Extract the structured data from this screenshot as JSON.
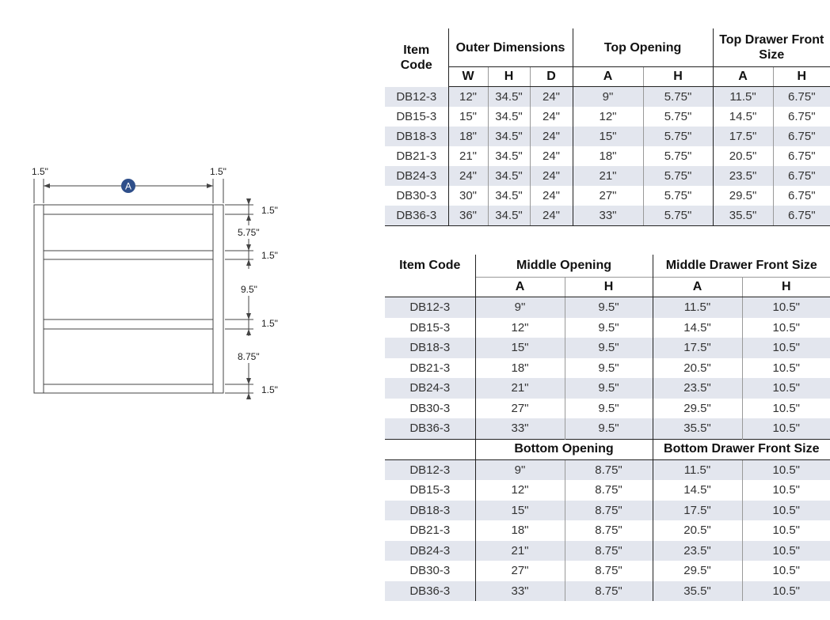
{
  "drawing": {
    "marker": "A",
    "left_stile": "1.5\"",
    "right_stile": "1.5\"",
    "rail_1": "1.5\"",
    "top_opening": "5.75\"",
    "rail_2": "1.5\"",
    "middle_opening": "9.5\"",
    "rail_3": "1.5\"",
    "bottom_opening": "8.75\"",
    "rail_4": "1.5\""
  },
  "top_table": {
    "headers": {
      "item_code": "Item Code",
      "outer": "Outer Dimensions",
      "top_opening": "Top Opening",
      "top_drawer": "Top Drawer Front Size"
    },
    "subheaders": [
      "W",
      "H",
      "D",
      "A",
      "H",
      "A",
      "H"
    ],
    "rows": [
      [
        "DB12-3",
        "12\"",
        "34.5\"",
        "24\"",
        "9\"",
        "5.75\"",
        "11.5\"",
        "6.75\""
      ],
      [
        "DB15-3",
        "15\"",
        "34.5\"",
        "24\"",
        "12\"",
        "5.75\"",
        "14.5\"",
        "6.75\""
      ],
      [
        "DB18-3",
        "18\"",
        "34.5\"",
        "24\"",
        "15\"",
        "5.75\"",
        "17.5\"",
        "6.75\""
      ],
      [
        "DB21-3",
        "21\"",
        "34.5\"",
        "24\"",
        "18\"",
        "5.75\"",
        "20.5\"",
        "6.75\""
      ],
      [
        "DB24-3",
        "24\"",
        "34.5\"",
        "24\"",
        "21\"",
        "5.75\"",
        "23.5\"",
        "6.75\""
      ],
      [
        "DB30-3",
        "30\"",
        "34.5\"",
        "24\"",
        "27\"",
        "5.75\"",
        "29.5\"",
        "6.75\""
      ],
      [
        "DB36-3",
        "36\"",
        "34.5\"",
        "24\"",
        "33\"",
        "5.75\"",
        "35.5\"",
        "6.75\""
      ]
    ]
  },
  "mid_table": {
    "headers": {
      "item_code": "Item Code",
      "middle_opening": "Middle Opening",
      "middle_drawer": "Middle Drawer Front Size",
      "bottom_opening": "Bottom Opening",
      "bottom_drawer": "Bottom Drawer Front Size"
    },
    "subheaders": [
      "A",
      "H",
      "A",
      "H"
    ],
    "middle_rows": [
      [
        "DB12-3",
        "9\"",
        "9.5\"",
        "11.5\"",
        "10.5\""
      ],
      [
        "DB15-3",
        "12\"",
        "9.5\"",
        "14.5\"",
        "10.5\""
      ],
      [
        "DB18-3",
        "15\"",
        "9.5\"",
        "17.5\"",
        "10.5\""
      ],
      [
        "DB21-3",
        "18\"",
        "9.5\"",
        "20.5\"",
        "10.5\""
      ],
      [
        "DB24-3",
        "21\"",
        "9.5\"",
        "23.5\"",
        "10.5\""
      ],
      [
        "DB30-3",
        "27\"",
        "9.5\"",
        "29.5\"",
        "10.5\""
      ],
      [
        "DB36-3",
        "33\"",
        "9.5\"",
        "35.5\"",
        "10.5\""
      ]
    ],
    "bottom_rows": [
      [
        "DB12-3",
        "9\"",
        "8.75\"",
        "11.5\"",
        "10.5\""
      ],
      [
        "DB15-3",
        "12\"",
        "8.75\"",
        "14.5\"",
        "10.5\""
      ],
      [
        "DB18-3",
        "15\"",
        "8.75\"",
        "17.5\"",
        "10.5\""
      ],
      [
        "DB21-3",
        "18\"",
        "8.75\"",
        "20.5\"",
        "10.5\""
      ],
      [
        "DB24-3",
        "21\"",
        "8.75\"",
        "23.5\"",
        "10.5\""
      ],
      [
        "DB30-3",
        "27\"",
        "8.75\"",
        "29.5\"",
        "10.5\""
      ],
      [
        "DB36-3",
        "33\"",
        "8.75\"",
        "35.5\"",
        "10.5\""
      ]
    ]
  },
  "colors": {
    "row_shade": "#e3e6ee",
    "marker_fill": "#2f4f8a",
    "rule": "#222222"
  }
}
